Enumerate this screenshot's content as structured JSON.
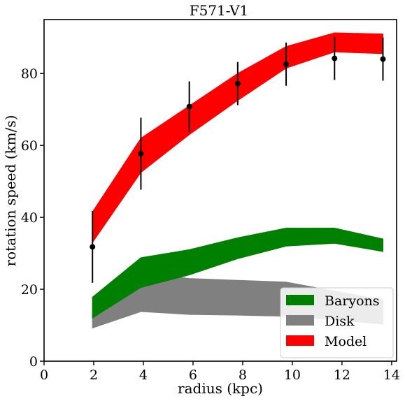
{
  "chart_data": {
    "type": "area",
    "title": "F571-V1",
    "xlabel": "radius (kpc)",
    "ylabel": "rotation speed (km/s)",
    "xlim": [
      0,
      14.2
    ],
    "ylim": [
      0,
      95
    ],
    "xticks": [
      0,
      2,
      4,
      6,
      8,
      10,
      12,
      14
    ],
    "yticks": [
      0,
      20,
      40,
      60,
      80
    ],
    "xtick_labels": [
      "0",
      "2",
      "4",
      "6",
      "8",
      "10",
      "12",
      "14"
    ],
    "ytick_labels": [
      "0",
      "20",
      "40",
      "60",
      "80"
    ],
    "grid": false,
    "legend_position": "lower-right",
    "series": [
      {
        "name": "Disk",
        "color": "#808080",
        "x": [
          1.95,
          3.9,
          5.85,
          7.8,
          9.75,
          11.7,
          13.65
        ],
        "lower": [
          9.2,
          13.8,
          13.0,
          12.8,
          12.5,
          11.5,
          10.3
        ],
        "upper": [
          16.0,
          24.5,
          23.0,
          22.5,
          22.0,
          19.5,
          17.0
        ]
      },
      {
        "name": "Baryons",
        "color": "#008000",
        "x": [
          1.95,
          3.9,
          5.85,
          7.8,
          9.75,
          11.7,
          13.65
        ],
        "lower": [
          12.0,
          20.5,
          24.0,
          28.5,
          32.0,
          32.8,
          30.5
        ],
        "upper": [
          17.8,
          28.8,
          31.0,
          34.3,
          37.0,
          37.0,
          34.0
        ]
      },
      {
        "name": "Model",
        "color": "#ff0000",
        "x": [
          1.95,
          3.9,
          5.85,
          7.8,
          9.75,
          11.7,
          13.65
        ],
        "lower": [
          33.0,
          52.5,
          63.0,
          72.5,
          81.5,
          86.0,
          85.5
        ],
        "upper": [
          41.5,
          62.0,
          71.0,
          80.0,
          87.5,
          91.3,
          91.0
        ]
      }
    ],
    "observations": {
      "x": [
        1.95,
        3.9,
        5.85,
        7.8,
        9.75,
        11.7,
        13.65
      ],
      "y": [
        31.8,
        57.7,
        70.8,
        77.2,
        82.6,
        84.2,
        84.0
      ],
      "err": [
        10.0,
        10.0,
        7.0,
        6.0,
        6.0,
        6.0,
        6.0
      ],
      "color": "#000000"
    }
  }
}
